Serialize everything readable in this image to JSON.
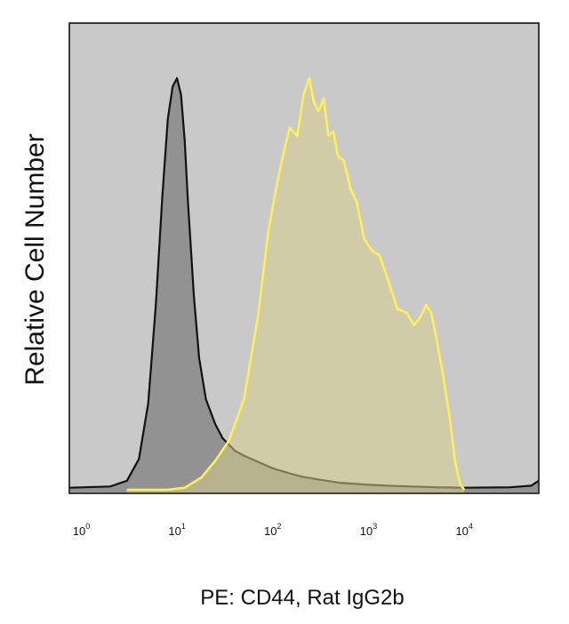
{
  "chart_data": {
    "type": "area",
    "xscale": "log",
    "xlabel": "PE: CD44, Rat IgG2b",
    "ylabel": "Relative Cell Number",
    "xlim": [
      0.75,
      60000
    ],
    "ylim": [
      0,
      100
    ],
    "grid": false,
    "legend": "none",
    "background_color": "#c9c9c9",
    "x_ticks": [
      {
        "base": "10",
        "exp": "0",
        "value": 1
      },
      {
        "base": "10",
        "exp": "1",
        "value": 10
      },
      {
        "base": "10",
        "exp": "2",
        "value": 100
      },
      {
        "base": "10",
        "exp": "3",
        "value": 1000
      },
      {
        "base": "10",
        "exp": "4",
        "value": 10000
      }
    ],
    "series": [
      {
        "color": "#111111",
        "fill": "#8c8c8c",
        "x": [
          0.75,
          2,
          3,
          4,
          5,
          6,
          7,
          8,
          9,
          10,
          11,
          12,
          13,
          15,
          17,
          20,
          25,
          30,
          40,
          50,
          70,
          100,
          150,
          200,
          300,
          500,
          1000,
          2000,
          5000,
          10000,
          30000,
          50000,
          60000
        ],
        "y": [
          0.5,
          0.8,
          2.2,
          7.5,
          21,
          45,
          71,
          90,
          98,
          100,
          96,
          85,
          70,
          47,
          32,
          22,
          16,
          12.5,
          9.5,
          8.3,
          6.8,
          5.2,
          4.0,
          3.2,
          2.5,
          1.7,
          1.2,
          0.9,
          0.6,
          0.5,
          0.6,
          1.0,
          2.2
        ]
      },
      {
        "color": "#fff05a",
        "fill": "#d7cd8c",
        "x": [
          3,
          5,
          8,
          12,
          18,
          25,
          35,
          50,
          70,
          90,
          110,
          130,
          150,
          180,
          210,
          240,
          270,
          300,
          340,
          380,
          430,
          480,
          550,
          650,
          750,
          900,
          1100,
          1300,
          1600,
          2000,
          2500,
          3000,
          3500,
          4000,
          4500,
          5000,
          6000,
          7000,
          8000,
          9000,
          10000
        ],
        "y": [
          0,
          0,
          0,
          0.5,
          3,
          7,
          12,
          22,
          42,
          63,
          74,
          82,
          88,
          86,
          96,
          100,
          94,
          92,
          95,
          86,
          87,
          81,
          80,
          73,
          70,
          61,
          58,
          57,
          51,
          44,
          43,
          40,
          42,
          45,
          43,
          38,
          28,
          18,
          7,
          1.5,
          0
        ]
      }
    ]
  }
}
